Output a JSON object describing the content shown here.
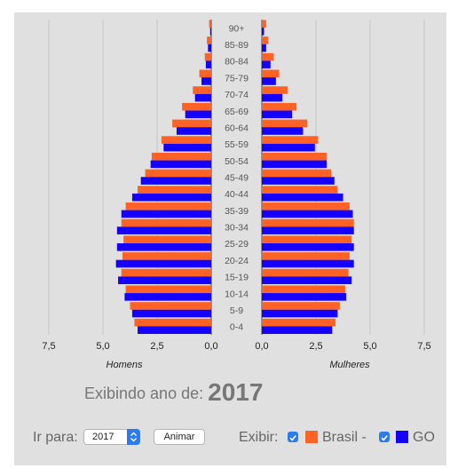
{
  "chart_data": {
    "type": "bar",
    "layout": "population-pyramid",
    "categories": [
      "90+",
      "85-89",
      "80-84",
      "75-79",
      "70-74",
      "65-69",
      "60-64",
      "55-59",
      "50-54",
      "45-49",
      "40-44",
      "35-39",
      "30-34",
      "25-29",
      "20-24",
      "15-19",
      "10-14",
      "5-9",
      "0-4"
    ],
    "x_ticks_left": [
      "7,5",
      "5,0",
      "2,5",
      "0,0"
    ],
    "x_ticks_right": [
      "0,0",
      "2,5",
      "5,0",
      "7,5"
    ],
    "xlim": [
      0,
      8.5
    ],
    "xlabel_left": "Homens",
    "xlabel_right": "Mulheres",
    "grid": true,
    "series": [
      {
        "name": "Brasil",
        "color": "#ff6224",
        "homens": [
          0.1,
          0.2,
          0.3,
          0.55,
          0.85,
          1.35,
          1.8,
          2.3,
          2.75,
          3.05,
          3.4,
          3.95,
          4.15,
          4.05,
          4.1,
          4.15,
          3.95,
          3.75,
          3.55
        ],
        "mulheres": [
          0.2,
          0.3,
          0.55,
          0.8,
          1.2,
          1.6,
          2.1,
          2.6,
          3.0,
          3.2,
          3.5,
          4.05,
          4.25,
          4.15,
          4.05,
          4.0,
          3.85,
          3.6,
          3.4
        ]
      },
      {
        "name": "GO",
        "color": "#1500ff",
        "homens": [
          0.05,
          0.15,
          0.25,
          0.45,
          0.75,
          1.2,
          1.6,
          2.2,
          2.8,
          3.25,
          3.65,
          4.15,
          4.35,
          4.35,
          4.4,
          4.3,
          4.0,
          3.65,
          3.4
        ],
        "mulheres": [
          0.1,
          0.2,
          0.4,
          0.65,
          0.95,
          1.4,
          1.9,
          2.45,
          3.0,
          3.35,
          3.75,
          4.2,
          4.25,
          4.25,
          4.25,
          4.15,
          3.9,
          3.5,
          3.25
        ]
      }
    ]
  },
  "status": {
    "label": "Exibindo ano de:",
    "year": "2017"
  },
  "controls": {
    "goto_label": "Ir para:",
    "year_value": "2017",
    "animate_label": "Animar",
    "show_label": "Exibir:",
    "brasil_label": "Brasil -",
    "go_label": "GO",
    "checkbox_color": "#2b7cf0"
  }
}
